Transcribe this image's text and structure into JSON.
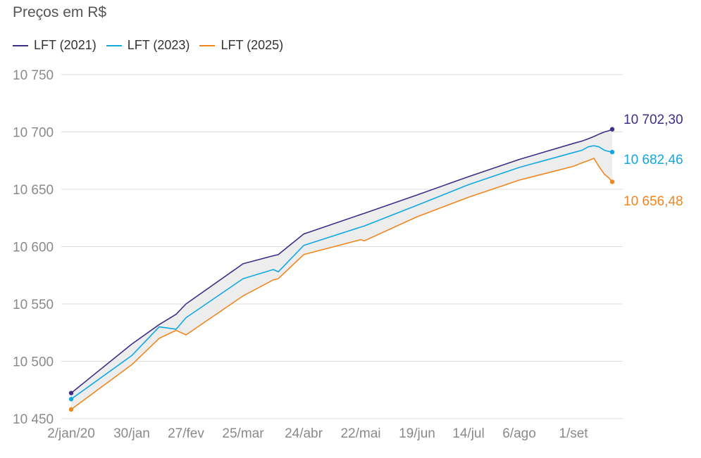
{
  "chart_data": {
    "type": "line",
    "title": "Preços em R$",
    "x_tick_labels": [
      "2/jan/20",
      "30/jan",
      "27/fev",
      "25/mar",
      "24/abr",
      "22/mai",
      "19/jun",
      "14/jul",
      "6/ago",
      "1/set"
    ],
    "ylim": [
      10450,
      10750
    ],
    "y_ticks": [
      10450,
      10500,
      10550,
      10600,
      10650,
      10700,
      10750
    ],
    "y_tick_labels": [
      "10 450",
      "10 500",
      "10 550",
      "10 600",
      "10 650",
      "10 700",
      "10 750"
    ],
    "grid": true,
    "legend_position": "top-left",
    "shaded_band_between": [
      "LFT (2021)",
      "LFT (2025)"
    ],
    "x": [
      "2/jan/20",
      "30/jan",
      "12/fev",
      "20/fev",
      "27/fev",
      "25/mar",
      "8/abr",
      "10/abr",
      "24/abr",
      "22/mai",
      "23/mai",
      "19/jun",
      "14/jul",
      "6/ago",
      "1/set",
      "2/set",
      "3/set",
      "4/set",
      "5/set",
      "8/set",
      "10/set",
      "11/set"
    ],
    "series": [
      {
        "name": "LFT (2021)",
        "color": "#3d2e86",
        "end_label": "10 702,30",
        "values": [
          10472.3,
          10515,
          10532,
          10541,
          10550,
          10585,
          10592,
          10593,
          10611,
          10628,
          10629,
          10645,
          10661,
          10676,
          10690,
          10692,
          10694,
          10696,
          10698,
          10700,
          10701,
          10702.3
        ]
      },
      {
        "name": "LFT (2023)",
        "color": "#11a8e0",
        "end_label": "10 682,46",
        "values": [
          10467,
          10505,
          10530,
          10528,
          10538,
          10572,
          10580,
          10578,
          10601,
          10617,
          10618,
          10636,
          10654,
          10669,
          10682,
          10684,
          10687,
          10688,
          10687,
          10684,
          10683,
          10682.46
        ]
      },
      {
        "name": "LFT (2025)",
        "color": "#f0861e",
        "end_label": "10 656,48",
        "values": [
          10458,
          10497,
          10520,
          10527,
          10523,
          10557,
          10571,
          10572,
          10593,
          10606,
          10605,
          10626,
          10643,
          10658,
          10670,
          10673,
          10675,
          10677,
          10670,
          10663,
          10660,
          10656.48
        ]
      }
    ]
  }
}
